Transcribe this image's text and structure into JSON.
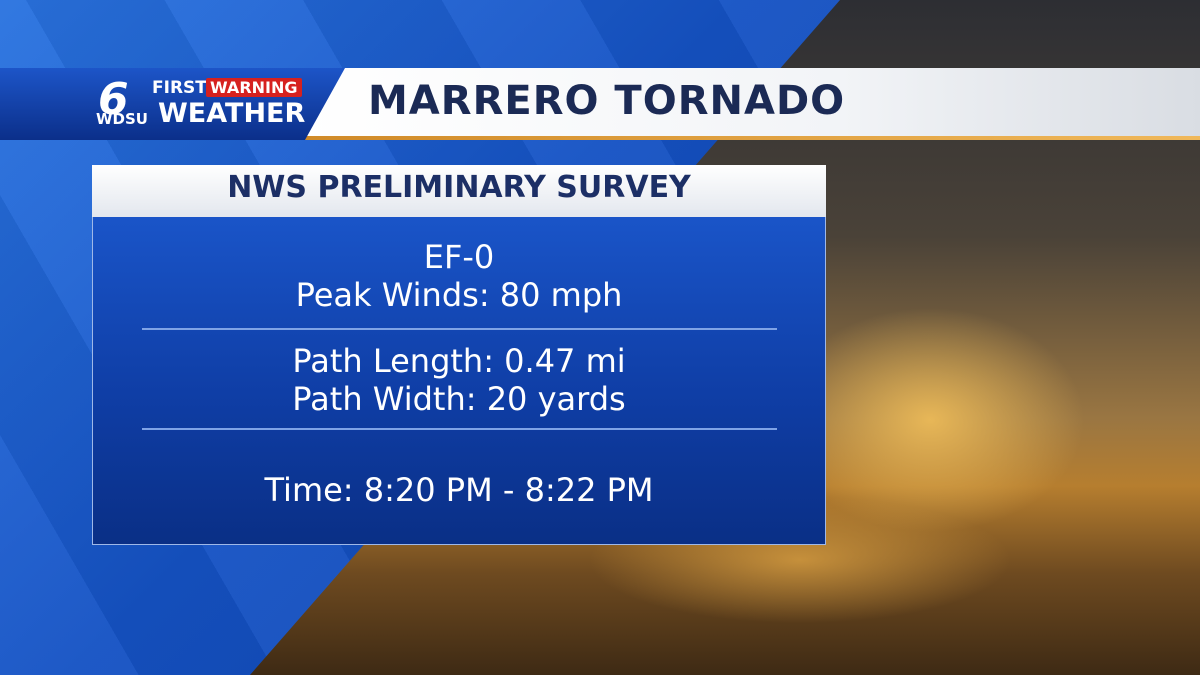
{
  "header": {
    "logo_number": "6",
    "logo_first": "FIRST",
    "logo_warning": "WARNING",
    "logo_station": "WDSU",
    "logo_weather": "WEATHER",
    "title": "MARRERO TORNADO"
  },
  "panel": {
    "title": "NWS PRELIMINARY SURVEY",
    "sections": [
      [
        "EF-0",
        "Peak Winds: 80 mph"
      ],
      [
        "Path Length: 0.47 mi",
        "Path Width: 20 yards"
      ],
      [
        "Time: 8:20 PM - 8:22 PM"
      ]
    ]
  }
}
